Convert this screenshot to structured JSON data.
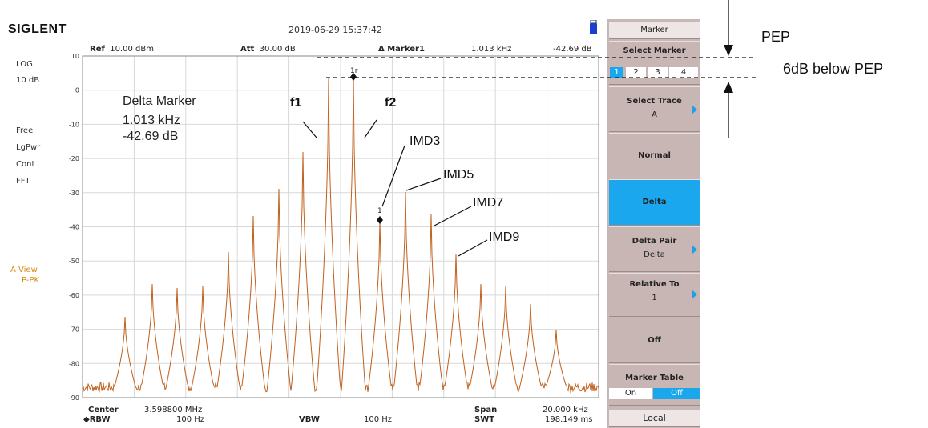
{
  "header": {
    "brand": "SIGLENT",
    "datetime": "2019-06-29  15:37:42",
    "ref_label": "Ref",
    "ref_value": "10.00 dBm",
    "att_label": "Att",
    "att_value": "30.00 dB",
    "marker_name": "Δ Marker1",
    "marker_freq": "1.013 kHz",
    "marker_amp": "-42.69 dB"
  },
  "left_status": {
    "scale_type": "LOG",
    "scale_div": "10 dB",
    "trigger": "Free",
    "detector": "LgPwr",
    "sweep_mode": "Cont",
    "sweep_type": "FFT",
    "trace_view": "A View",
    "trace_det": "P-PK"
  },
  "plot": {
    "y_ticks": [
      "10",
      "0",
      "-10",
      "-20",
      "-30",
      "-40",
      "-50",
      "-60",
      "-70",
      "-80",
      "-90"
    ],
    "delta_box": {
      "title": "Delta Marker",
      "freq": "1.013 kHz",
      "amp": "-42.69 dB"
    },
    "marker_labels": {
      "m1r": "1r",
      "m1": "1"
    },
    "annotations": {
      "f1": "f1",
      "f2": "f2",
      "imd3": "IMD3",
      "imd5": "IMD5",
      "imd7": "IMD7",
      "imd9": "IMD9"
    },
    "trace_color": "#c0601c",
    "grid_color": "#d8d8d8"
  },
  "bottom": {
    "center_label": "Center",
    "center_value": "3.598800 MHz",
    "rbw_label": "RBW",
    "rbw_value": "100 Hz",
    "vbw_label": "VBW",
    "vbw_value": "100 Hz",
    "span_label": "Span",
    "span_value": "20.000 kHz",
    "swt_label": "SWT",
    "swt_value": "198.149 ms"
  },
  "softkeys": {
    "title": "Marker",
    "select_marker": "Select Marker",
    "markers": [
      "1",
      "2",
      "3",
      "4"
    ],
    "select_trace": "Select Trace",
    "select_trace_value": "A",
    "normal": "Normal",
    "delta": "Delta",
    "delta_pair": "Delta Pair",
    "delta_pair_value": "Delta",
    "relative_to": "Relative To",
    "relative_to_value": "1",
    "off": "Off",
    "marker_table": "Marker Table",
    "table_on": "On",
    "table_off": "Off",
    "local": "Local",
    "accent": "#1aa7ee"
  },
  "outside": {
    "pep": "PEP",
    "below_pep": "6dB below PEP"
  }
}
